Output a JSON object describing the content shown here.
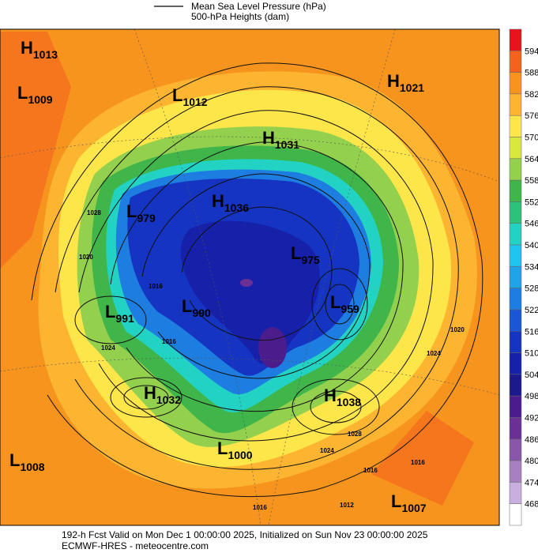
{
  "legend": {
    "lines": [
      "Mean Sea Level Pressure (hPa)",
      "500-hPa Heights (dam)"
    ]
  },
  "colorbar": {
    "ticks": [
      594,
      588,
      582,
      576,
      570,
      564,
      558,
      552,
      546,
      540,
      534,
      528,
      522,
      516,
      510,
      504,
      498,
      492,
      486,
      480,
      474,
      468
    ],
    "colors": [
      "#e8141c",
      "#f4621e",
      "#f7941d",
      "#fcb431",
      "#fde64a",
      "#d8e83c",
      "#93d04e",
      "#3fb54a",
      "#2cc27c",
      "#22d3c4",
      "#1ec6ef",
      "#1fa4e8",
      "#1e7de0",
      "#1a56d6",
      "#1534c2",
      "#1620a8",
      "#1c1a8a",
      "#4a1c8c",
      "#6a3096",
      "#8a56aa",
      "#a880c2",
      "#c9afe0",
      "#ffffff"
    ]
  },
  "centers": [
    {
      "letter": "H",
      "value": 1013
    },
    {
      "letter": "L",
      "value": 1009
    },
    {
      "letter": "L",
      "value": 1012
    },
    {
      "letter": "H",
      "value": 1031
    },
    {
      "letter": "H",
      "value": 1021
    },
    {
      "letter": "H",
      "value": 1036
    },
    {
      "letter": "L",
      "value": 979
    },
    {
      "letter": "L",
      "value": 975
    },
    {
      "letter": "L",
      "value": 991
    },
    {
      "letter": "L",
      "value": 990
    },
    {
      "letter": "L",
      "value": 959
    },
    {
      "letter": "H",
      "value": 1032
    },
    {
      "letter": "H",
      "value": 1038
    },
    {
      "letter": "L",
      "value": 1008
    },
    {
      "letter": "L",
      "value": 1000
    },
    {
      "letter": "L",
      "value": 1007
    }
  ],
  "contour_labels": [
    1016,
    1024,
    1020,
    1016,
    1024,
    1028,
    1024,
    1016,
    1012,
    1016,
    1020,
    1016,
    1028
  ],
  "footer": {
    "lines": [
      "192-h Fcst Valid on Mon Dec  1 00:00:00 2025, Initialized on Sun Nov 23 00:00:00 2025",
      "ECMWF-HRES  - meteocentre.com"
    ]
  }
}
